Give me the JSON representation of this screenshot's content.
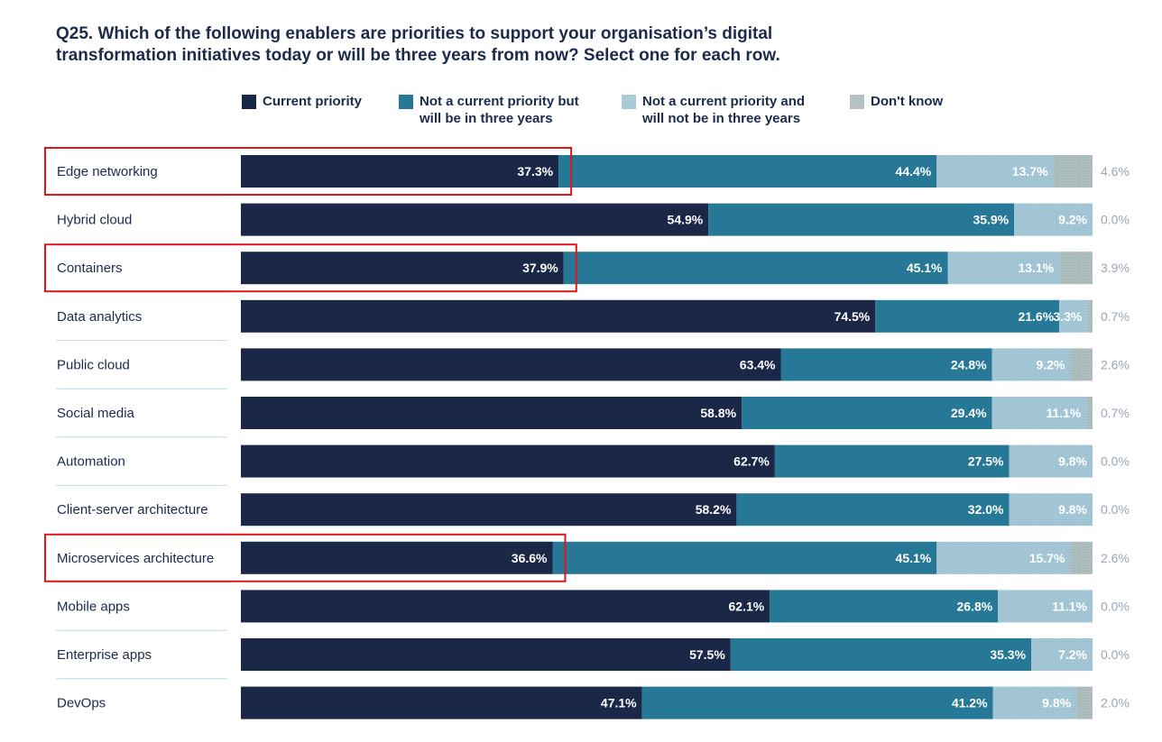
{
  "title_lines": [
    "Q25. Which of the following enablers are priorities to support your organisation’s digital",
    "transformation initiatives today or will be three years from now? Select one for each row."
  ],
  "colors": {
    "current": "#1b2747",
    "future": "#267896",
    "never": "#a9cad8",
    "dontknow": "#b3c3c3",
    "divider": "#bfdbe6",
    "highlight": "#e2151c"
  },
  "chart_data": {
    "type": "bar",
    "orientation": "horizontal",
    "stacked": true,
    "categories": [
      "Edge networking",
      "Hybrid cloud",
      "Containers",
      "Data analytics",
      "Public cloud",
      "Social media",
      "Automation",
      "Client-server architecture",
      "Microservices architecture",
      "Mobile apps",
      "Enterprise apps",
      "DevOps"
    ],
    "series": [
      {
        "name": "Current priority",
        "legend_lines": [
          "Current priority"
        ],
        "color_key": "current",
        "values": [
          37.3,
          54.9,
          37.9,
          74.5,
          63.4,
          58.8,
          62.7,
          58.2,
          36.6,
          62.1,
          57.5,
          47.1
        ],
        "labels": [
          "37.3%",
          "54.9%",
          "37.9%",
          "74.5%",
          "63.4%",
          "58.8%",
          "62.7%",
          "58.2%",
          "36.6%",
          "62.1%",
          "57.5%",
          "47.1%"
        ]
      },
      {
        "name": "Not a current priority but will be in three years",
        "legend_lines": [
          "Not a current priority but",
          "will be in three years"
        ],
        "color_key": "future",
        "values": [
          44.4,
          35.9,
          45.1,
          21.6,
          24.8,
          29.4,
          27.5,
          32.0,
          45.1,
          26.8,
          35.3,
          41.2
        ],
        "labels": [
          "44.4%",
          "35.9%",
          "45.1%",
          "21.6%",
          "24.8%",
          "29.4%",
          "27.5%",
          "32.0%",
          "45.1%",
          "26.8%",
          "35.3%",
          "41.2%"
        ]
      },
      {
        "name": "Not a current priority and will not be in three years",
        "legend_lines": [
          "Not a current priority and",
          "will not be in three years"
        ],
        "color_key": "never",
        "values": [
          13.7,
          9.2,
          13.1,
          3.3,
          9.2,
          11.1,
          9.8,
          9.8,
          15.7,
          11.1,
          7.2,
          9.8
        ],
        "labels": [
          "13.7%",
          "9.2%",
          "13.1%",
          "3.3%",
          "9.2%",
          "11.1%",
          "9.8%",
          "9.8%",
          "15.7%",
          "11.1%",
          "7.2%",
          "9.8%"
        ]
      },
      {
        "name": "Don't know",
        "legend_lines": [
          "Don't know"
        ],
        "color_key": "dontknow",
        "values": [
          4.6,
          0.0,
          3.9,
          0.7,
          2.6,
          0.7,
          0.0,
          0.0,
          2.6,
          0.0,
          0.0,
          2.0
        ],
        "labels": [
          "4.6%",
          "0.0%",
          "3.9%",
          "0.7%",
          "2.6%",
          "0.7%",
          "0.0%",
          "0.0%",
          "2.6%",
          "0.0%",
          "0.0%",
          "2.0%"
        ]
      }
    ],
    "xlim": [
      0,
      100
    ],
    "highlighted_categories": [
      "Edge networking",
      "Containers",
      "Microservices architecture"
    ]
  }
}
